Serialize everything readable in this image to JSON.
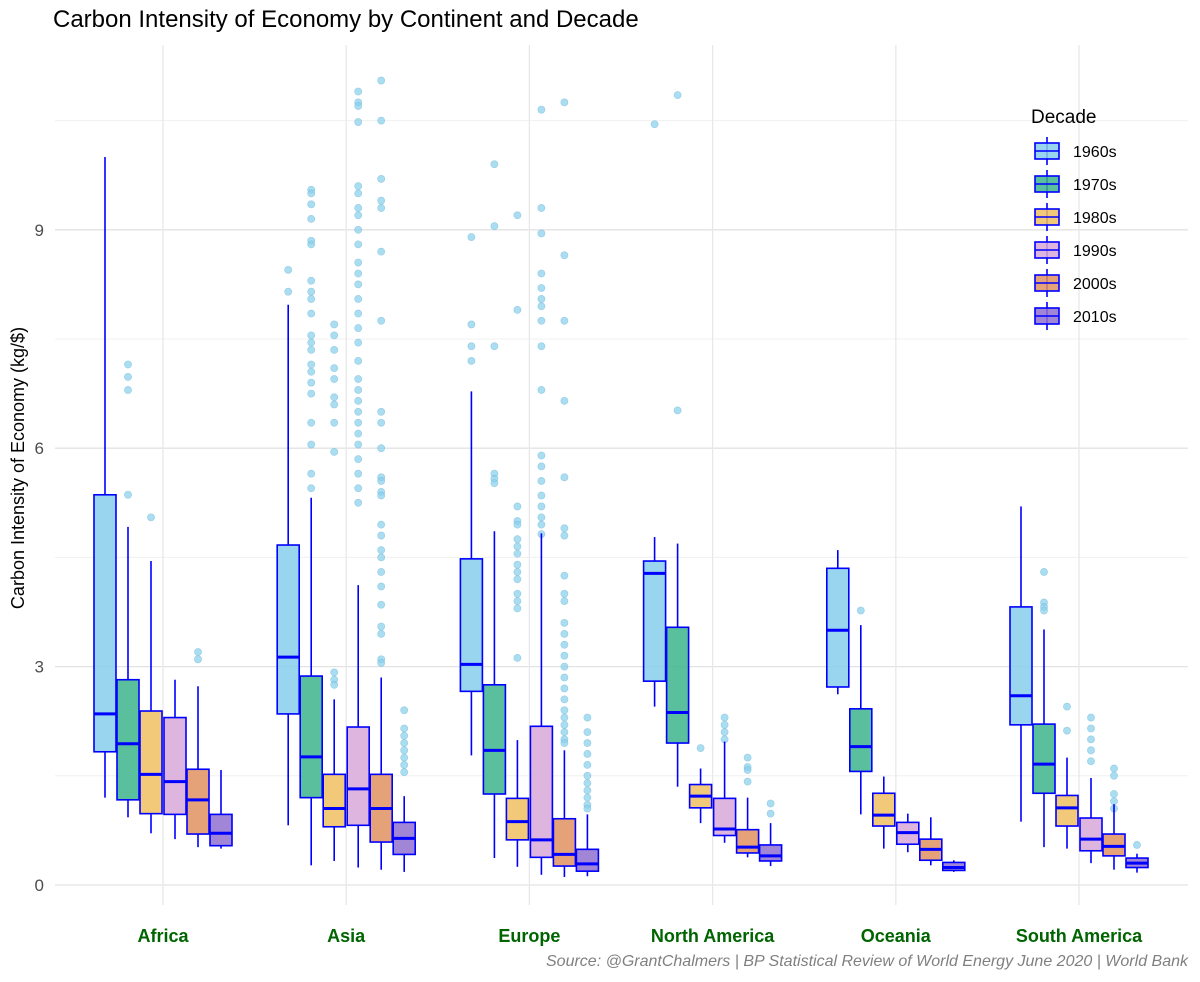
{
  "chart_data": {
    "type": "boxplot",
    "title": "Carbon Intensity of Economy by Continent and Decade",
    "caption": "Source: @GrantChalmers | BP Statistical Review of World Energy June 2020 | World Bank",
    "ylabel": "Carbon Intensity of Economy (kg/$)",
    "xlabel": "",
    "ylim": [
      -0.4,
      11.8
    ],
    "yticks": [
      "0",
      "3",
      "6",
      "9"
    ],
    "ytick_values": [
      0,
      3,
      6,
      9
    ],
    "grid": true,
    "legend": {
      "title": "Decade",
      "placement": "top-right"
    },
    "categories": [
      "Africa",
      "Asia",
      "Europe",
      "North America",
      "Oceania",
      "South America"
    ],
    "series": [
      {
        "name": "1960s",
        "color": "#87CEEB",
        "stats": [
          {
            "min": 1.2,
            "q1": 1.83,
            "median": 2.35,
            "q3": 5.36,
            "max": 10.0,
            "outliers": []
          },
          {
            "min": 0.82,
            "q1": 2.35,
            "median": 3.13,
            "q3": 4.67,
            "max": 7.97,
            "outliers": [
              8.45,
              8.15
            ]
          },
          {
            "min": 1.78,
            "q1": 2.66,
            "median": 3.03,
            "q3": 4.48,
            "max": 6.78,
            "outliers": [
              8.9,
              7.7,
              7.4,
              7.2
            ]
          },
          {
            "min": 2.45,
            "q1": 2.8,
            "median": 4.28,
            "q3": 4.45,
            "max": 4.78,
            "outliers": [
              10.45
            ]
          },
          {
            "min": 2.62,
            "q1": 2.72,
            "median": 3.5,
            "q3": 4.35,
            "max": 4.6,
            "outliers": []
          },
          {
            "min": 0.87,
            "q1": 2.2,
            "median": 2.6,
            "q3": 3.82,
            "max": 5.2,
            "outliers": []
          }
        ]
      },
      {
        "name": "1970s",
        "color": "#3CB48C",
        "stats": [
          {
            "min": 0.93,
            "q1": 1.17,
            "median": 1.94,
            "q3": 2.82,
            "max": 4.92,
            "outliers": [
              7.15,
              6.98,
              6.8,
              5.36
            ]
          },
          {
            "min": 0.27,
            "q1": 1.2,
            "median": 1.76,
            "q3": 2.87,
            "max": 5.32,
            "outliers": [
              9.55,
              9.5,
              9.35,
              9.15,
              8.85,
              8.8,
              8.3,
              8.15,
              8.05,
              7.85,
              7.55,
              7.45,
              7.35,
              7.15,
              7.05,
              6.9,
              6.75,
              6.35,
              6.05,
              5.65,
              5.45
            ]
          },
          {
            "min": 0.37,
            "q1": 1.25,
            "median": 1.85,
            "q3": 2.75,
            "max": 4.86,
            "outliers": [
              9.9,
              9.05,
              7.4,
              5.65,
              5.58,
              5.52
            ]
          },
          {
            "min": 1.35,
            "q1": 1.95,
            "median": 2.37,
            "q3": 3.54,
            "max": 4.69,
            "outliers": [
              10.85,
              6.52
            ]
          },
          {
            "min": 0.97,
            "q1": 1.56,
            "median": 1.9,
            "q3": 2.42,
            "max": 3.57,
            "outliers": [
              3.77
            ]
          },
          {
            "min": 0.52,
            "q1": 1.26,
            "median": 1.66,
            "q3": 2.21,
            "max": 3.51,
            "outliers": [
              4.3,
              3.88,
              3.82,
              3.77
            ]
          }
        ]
      },
      {
        "name": "1980s",
        "color": "#F0C060",
        "stats": [
          {
            "min": 0.71,
            "q1": 0.98,
            "median": 1.52,
            "q3": 2.39,
            "max": 4.45,
            "outliers": [
              5.05
            ]
          },
          {
            "min": 0.33,
            "q1": 0.8,
            "median": 1.05,
            "q3": 1.52,
            "max": 2.55,
            "outliers": [
              7.7,
              7.55,
              7.35,
              7.1,
              6.95,
              6.7,
              6.6,
              6.35,
              5.95,
              2.92,
              2.82,
              2.75
            ]
          },
          {
            "min": 0.25,
            "q1": 0.62,
            "median": 0.87,
            "q3": 1.19,
            "max": 1.99,
            "outliers": [
              9.2,
              7.9,
              5.2,
              5.0,
              4.95,
              4.75,
              4.65,
              4.55,
              4.4,
              4.3,
              4.2,
              4.0,
              3.9,
              3.8,
              3.12
            ]
          },
          {
            "min": 0.85,
            "q1": 1.06,
            "median": 1.22,
            "q3": 1.38,
            "max": 1.6,
            "outliers": [
              1.88
            ]
          },
          {
            "min": 0.5,
            "q1": 0.81,
            "median": 0.96,
            "q3": 1.26,
            "max": 1.49,
            "outliers": []
          },
          {
            "min": 0.5,
            "q1": 0.81,
            "median": 1.06,
            "q3": 1.23,
            "max": 1.75,
            "outliers": [
              2.45,
              2.12
            ]
          }
        ]
      },
      {
        "name": "1990s",
        "color": "#D8A8D8",
        "stats": [
          {
            "min": 0.63,
            "q1": 0.97,
            "median": 1.42,
            "q3": 2.3,
            "max": 2.82,
            "outliers": []
          },
          {
            "min": 0.24,
            "q1": 0.82,
            "median": 1.32,
            "q3": 2.17,
            "max": 4.12,
            "outliers": [
              10.9,
              10.75,
              10.7,
              10.48,
              9.6,
              9.5,
              9.3,
              9.2,
              9.0,
              8.8,
              8.55,
              8.4,
              8.25,
              8.05,
              7.85,
              7.65,
              7.45,
              7.2,
              6.95,
              6.8,
              6.65,
              6.5,
              6.35,
              6.2,
              6.05,
              5.85,
              5.65,
              5.45,
              5.25
            ]
          },
          {
            "min": 0.14,
            "q1": 0.38,
            "median": 0.62,
            "q3": 2.18,
            "max": 4.83,
            "outliers": [
              10.65,
              9.3,
              8.95,
              8.4,
              8.2,
              8.05,
              7.95,
              7.75,
              7.4,
              6.8,
              5.9,
              5.75,
              5.55,
              5.35,
              5.2,
              5.05,
              4.95,
              4.82
            ]
          },
          {
            "min": 0.58,
            "q1": 0.68,
            "median": 0.77,
            "q3": 1.19,
            "max": 1.97,
            "outliers": [
              2.3,
              2.2,
              2.1,
              2.0
            ]
          },
          {
            "min": 0.45,
            "q1": 0.56,
            "median": 0.72,
            "q3": 0.86,
            "max": 0.98,
            "outliers": []
          },
          {
            "min": 0.3,
            "q1": 0.47,
            "median": 0.63,
            "q3": 0.92,
            "max": 1.47,
            "outliers": [
              2.3,
              2.15,
              2.0,
              1.85,
              1.7
            ]
          }
        ]
      },
      {
        "name": "2000s",
        "color": "#E09060",
        "stats": [
          {
            "min": 0.52,
            "q1": 0.7,
            "median": 1.17,
            "q3": 1.59,
            "max": 2.73,
            "outliers": [
              3.2,
              3.1
            ]
          },
          {
            "min": 0.21,
            "q1": 0.59,
            "median": 1.05,
            "q3": 1.52,
            "max": 2.85,
            "outliers": [
              11.05,
              10.5,
              9.7,
              9.4,
              9.3,
              8.7,
              7.75,
              6.5,
              6.35,
              6.0,
              5.6,
              5.55,
              5.4,
              5.35,
              4.95,
              4.8,
              4.6,
              4.5,
              4.3,
              4.1,
              3.85,
              3.55,
              3.45,
              3.1,
              3.05
            ]
          },
          {
            "min": 0.11,
            "q1": 0.26,
            "median": 0.42,
            "q3": 0.91,
            "max": 1.85,
            "outliers": [
              10.75,
              8.65,
              7.75,
              6.65,
              5.6,
              4.9,
              4.8,
              4.25,
              4.0,
              3.9,
              3.6,
              3.45,
              3.3,
              3.15,
              3.0,
              2.85,
              2.7,
              2.55,
              2.4,
              2.3,
              2.2,
              2.1,
              2.0,
              1.95
            ]
          },
          {
            "min": 0.38,
            "q1": 0.44,
            "median": 0.52,
            "q3": 0.76,
            "max": 1.2,
            "outliers": [
              1.75,
              1.62,
              1.58,
              1.42
            ]
          },
          {
            "min": 0.27,
            "q1": 0.34,
            "median": 0.49,
            "q3": 0.63,
            "max": 0.93,
            "outliers": []
          },
          {
            "min": 0.21,
            "q1": 0.4,
            "median": 0.53,
            "q3": 0.7,
            "max": 1.11,
            "outliers": [
              1.6,
              1.5,
              1.25,
              1.15,
              1.05
            ]
          }
        ]
      },
      {
        "name": "2010s",
        "color": "#9070D0",
        "stats": [
          {
            "min": 0.5,
            "q1": 0.54,
            "median": 0.71,
            "q3": 0.97,
            "max": 1.58,
            "outliers": []
          },
          {
            "min": 0.18,
            "q1": 0.42,
            "median": 0.64,
            "q3": 0.86,
            "max": 1.22,
            "outliers": [
              2.4,
              2.15,
              2.05,
              1.95,
              1.85,
              1.75,
              1.65,
              1.55
            ]
          },
          {
            "min": 0.12,
            "q1": 0.19,
            "median": 0.29,
            "q3": 0.49,
            "max": 0.97,
            "outliers": [
              2.3,
              2.1,
              1.95,
              1.8,
              1.65,
              1.5,
              1.4,
              1.3,
              1.2,
              1.1,
              1.05
            ]
          },
          {
            "min": 0.26,
            "q1": 0.33,
            "median": 0.4,
            "q3": 0.55,
            "max": 0.85,
            "outliers": [
              1.12,
              0.98
            ]
          },
          {
            "min": 0.18,
            "q1": 0.2,
            "median": 0.24,
            "q3": 0.31,
            "max": 0.34,
            "outliers": []
          },
          {
            "min": 0.17,
            "q1": 0.24,
            "median": 0.3,
            "q3": 0.37,
            "max": 0.43,
            "outliers": [
              0.55
            ]
          }
        ]
      }
    ]
  }
}
